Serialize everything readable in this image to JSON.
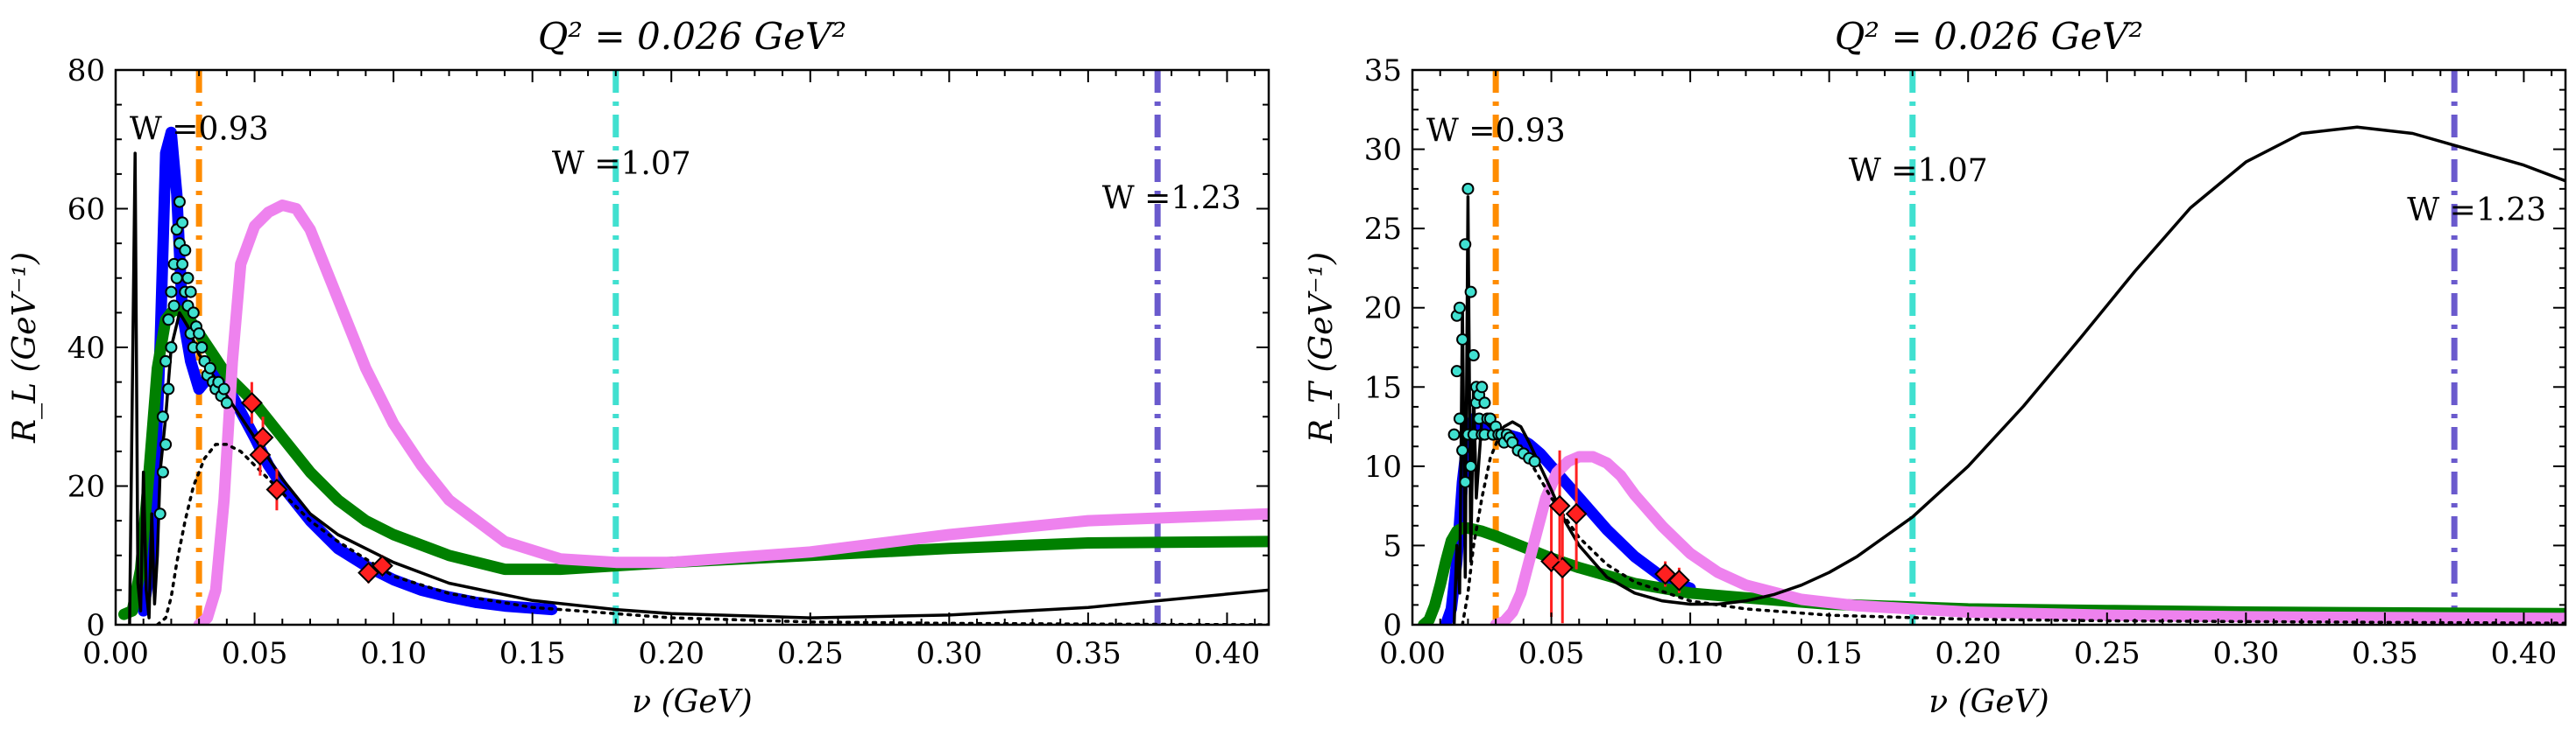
{
  "chart_data": [
    {
      "type": "line",
      "title": "Q² = 0.026 GeV²",
      "xlabel": "ν (GeV)",
      "ylabel": "R_L (GeV⁻¹)",
      "xlim": [
        0,
        0.415
      ],
      "ylim": [
        0,
        80
      ],
      "x_ticks": [
        0.0,
        0.05,
        0.1,
        0.15,
        0.2,
        0.25,
        0.3,
        0.35,
        0.4
      ],
      "x_tick_labels": [
        "0.00",
        "0.05",
        "0.10",
        "0.15",
        "0.20",
        "0.25",
        "0.30",
        "0.35",
        "0.40"
      ],
      "y_ticks": [
        0,
        20,
        40,
        60,
        80
      ],
      "y_tick_labels": [
        "0",
        "20",
        "40",
        "60",
        "80"
      ],
      "grid": false,
      "vlines": [
        {
          "x": 0.03,
          "color": "#ff8c00",
          "label": "W =0.93",
          "label_x": 0.005,
          "label_y": 70
        },
        {
          "x": 0.18,
          "color": "#40e0d0",
          "label": "W =1.07",
          "label_x": 0.157,
          "label_y": 65
        },
        {
          "x": 0.375,
          "color": "#6a5acd",
          "label": "W =1.23",
          "label_x": 0.355,
          "label_y": 60
        }
      ],
      "series": [
        {
          "color": "#0000ff",
          "width": 13,
          "style": "solid",
          "x": [
            0.01,
            0.013,
            0.016,
            0.018,
            0.02,
            0.022,
            0.024,
            0.027,
            0.03,
            0.034,
            0.038,
            0.042,
            0.046,
            0.05,
            0.055,
            0.06,
            0.07,
            0.08,
            0.09,
            0.1,
            0.11,
            0.12,
            0.13,
            0.14,
            0.157
          ],
          "y": [
            2,
            10,
            40,
            68,
            71,
            62,
            45,
            38,
            34,
            36,
            36,
            33,
            30,
            27,
            23,
            20,
            15,
            11,
            8.5,
            6.5,
            5,
            4,
            3.2,
            2.7,
            2.2
          ]
        },
        {
          "color": "#008000",
          "width": 13,
          "style": "solid",
          "x": [
            0.003,
            0.006,
            0.009,
            0.012,
            0.015,
            0.018,
            0.021,
            0.025,
            0.03,
            0.035,
            0.04,
            0.05,
            0.06,
            0.07,
            0.08,
            0.09,
            0.1,
            0.12,
            0.14,
            0.16,
            0.18,
            0.2,
            0.25,
            0.3,
            0.35,
            0.415
          ],
          "y": [
            1.5,
            2,
            8,
            22,
            37,
            44,
            45.5,
            45,
            42,
            39,
            36,
            32,
            27,
            22,
            18,
            15,
            13,
            10,
            8,
            8,
            8.5,
            9,
            10,
            11,
            11.8,
            12
          ]
        },
        {
          "color": "#ee82ee",
          "width": 13,
          "style": "solid",
          "x": [
            0.03,
            0.033,
            0.036,
            0.039,
            0.042,
            0.045,
            0.05,
            0.055,
            0.06,
            0.065,
            0.07,
            0.08,
            0.09,
            0.1,
            0.11,
            0.12,
            0.14,
            0.16,
            0.18,
            0.2,
            0.25,
            0.3,
            0.35,
            0.415
          ],
          "y": [
            0,
            1,
            5,
            18,
            38,
            52,
            57.5,
            59.5,
            60.5,
            60,
            57,
            47,
            37,
            29,
            23,
            18,
            12,
            9.5,
            9,
            9,
            10.5,
            13,
            15,
            16
          ]
        },
        {
          "color": "#000000",
          "width": 3.5,
          "style": "solid",
          "x": [
            0.005,
            0.007,
            0.008,
            0.009,
            0.01,
            0.011,
            0.012,
            0.013,
            0.014,
            0.015,
            0.016,
            0.018,
            0.02,
            0.023,
            0.026,
            0.03,
            0.035,
            0.04,
            0.045,
            0.05,
            0.06,
            0.07,
            0.08,
            0.1,
            0.12,
            0.15,
            0.18,
            0.2,
            0.25,
            0.3,
            0.35,
            0.415
          ],
          "y": [
            0,
            68,
            6,
            2,
            22,
            5,
            1,
            16,
            3,
            10,
            22,
            30,
            40,
            45,
            43,
            39,
            36,
            33,
            30,
            27,
            21,
            16,
            13,
            9,
            6,
            3.5,
            2.2,
            1.6,
            1,
            1.4,
            2.5,
            5
          ]
        },
        {
          "color": "#000000",
          "width": 3.5,
          "style": "dotted",
          "x": [
            0.015,
            0.018,
            0.02,
            0.022,
            0.025,
            0.028,
            0.032,
            0.036,
            0.04,
            0.045,
            0.05,
            0.06,
            0.07,
            0.08,
            0.1,
            0.12,
            0.15,
            0.2,
            0.25,
            0.3,
            0.35,
            0.415
          ],
          "y": [
            0,
            1,
            4,
            9,
            15,
            20,
            24,
            26,
            26,
            25,
            23,
            19,
            15,
            12,
            7,
            4.5,
            2.5,
            1,
            0.4,
            0.2,
            0.1,
            0
          ]
        }
      ],
      "scatter_points": {
        "color": "#40e0d0",
        "x": [
          0.016,
          0.017,
          0.017,
          0.018,
          0.018,
          0.019,
          0.019,
          0.02,
          0.02,
          0.021,
          0.021,
          0.022,
          0.022,
          0.023,
          0.023,
          0.024,
          0.024,
          0.025,
          0.025,
          0.026,
          0.026,
          0.027,
          0.027,
          0.028,
          0.028,
          0.029,
          0.03,
          0.031,
          0.032,
          0.033,
          0.034,
          0.035,
          0.036,
          0.037,
          0.038,
          0.039,
          0.04
        ],
        "y": [
          16,
          22,
          30,
          38,
          26,
          44,
          34,
          48,
          40,
          52,
          46,
          57,
          50,
          61,
          55,
          58,
          52,
          54,
          48,
          50,
          46,
          48,
          42,
          45,
          40,
          43,
          42,
          40,
          38,
          36,
          37,
          35,
          34,
          35,
          33,
          34,
          32
        ]
      },
      "diamond_points": {
        "color": "#ff2020",
        "x": [
          0.049,
          0.053,
          0.052,
          0.058,
          0.091,
          0.096
        ],
        "y": [
          32,
          27,
          24.5,
          19.5,
          7.5,
          8.5
        ],
        "err": [
          3,
          3,
          3,
          3,
          1.5,
          1.5
        ]
      }
    },
    {
      "type": "line",
      "title": "Q² = 0.026 GeV²",
      "xlabel": "ν (GeV)",
      "ylabel": "R_T (GeV⁻¹)",
      "xlim": [
        0,
        0.415
      ],
      "ylim": [
        0,
        35
      ],
      "x_ticks": [
        0.0,
        0.05,
        0.1,
        0.15,
        0.2,
        0.25,
        0.3,
        0.35,
        0.4
      ],
      "x_tick_labels": [
        "0.00",
        "0.05",
        "0.10",
        "0.15",
        "0.20",
        "0.25",
        "0.30",
        "0.35",
        "0.40"
      ],
      "y_ticks": [
        0,
        5,
        10,
        15,
        20,
        25,
        30,
        35
      ],
      "y_tick_labels": [
        "0",
        "5",
        "10",
        "15",
        "20",
        "25",
        "30",
        "35"
      ],
      "grid": false,
      "vlines": [
        {
          "x": 0.03,
          "color": "#ff8c00",
          "label": "W =0.93",
          "label_x": 0.005,
          "label_y": 30.5
        },
        {
          "x": 0.18,
          "color": "#40e0d0",
          "label": "W =1.07",
          "label_x": 0.157,
          "label_y": 28
        },
        {
          "x": 0.375,
          "color": "#6a5acd",
          "label": "W =1.23",
          "label_x": 0.358,
          "label_y": 25.5
        }
      ],
      "series": [
        {
          "color": "#0000ff",
          "width": 13,
          "style": "solid",
          "x": [
            0.012,
            0.014,
            0.016,
            0.018,
            0.02,
            0.022,
            0.025,
            0.028,
            0.03,
            0.034,
            0.038,
            0.042,
            0.046,
            0.05,
            0.055,
            0.06,
            0.065,
            0.07,
            0.08,
            0.09,
            0.1
          ],
          "y": [
            0,
            1,
            4,
            9,
            12,
            13,
            12.5,
            12.2,
            12,
            12,
            11.8,
            11.4,
            10.8,
            10,
            9,
            8,
            7,
            6,
            4.3,
            3,
            2.3
          ]
        },
        {
          "color": "#008000",
          "width": 13,
          "style": "solid",
          "x": [
            0.004,
            0.006,
            0.008,
            0.01,
            0.012,
            0.014,
            0.016,
            0.018,
            0.02,
            0.025,
            0.03,
            0.04,
            0.05,
            0.06,
            0.07,
            0.08,
            0.09,
            0.1,
            0.12,
            0.15,
            0.2,
            0.25,
            0.3,
            0.35,
            0.415
          ],
          "y": [
            0,
            0.3,
            1.2,
            2.5,
            4,
            5.3,
            5.9,
            6.1,
            6.1,
            5.9,
            5.6,
            4.9,
            4.2,
            3.6,
            3.1,
            2.6,
            2.3,
            2,
            1.7,
            1.3,
            1,
            0.9,
            0.8,
            0.75,
            0.7
          ]
        },
        {
          "color": "#ee82ee",
          "width": 13,
          "style": "solid",
          "x": [
            0.03,
            0.033,
            0.036,
            0.039,
            0.042,
            0.045,
            0.048,
            0.052,
            0.056,
            0.06,
            0.065,
            0.07,
            0.075,
            0.08,
            0.09,
            0.1,
            0.11,
            0.12,
            0.14,
            0.16,
            0.2,
            0.25,
            0.3,
            0.35,
            0.415
          ],
          "y": [
            0,
            0.2,
            0.8,
            2,
            4,
            6,
            8,
            9.6,
            10.3,
            10.6,
            10.6,
            10.2,
            9.4,
            8.2,
            6.2,
            4.5,
            3.3,
            2.5,
            1.6,
            1.2,
            0.8,
            0.6,
            0.5,
            0.45,
            0.4
          ]
        },
        {
          "color": "#000000",
          "width": 3.5,
          "style": "solid",
          "x": [
            0.015,
            0.016,
            0.017,
            0.018,
            0.019,
            0.02,
            0.021,
            0.022,
            0.023,
            0.025,
            0.028,
            0.03,
            0.033,
            0.036,
            0.039,
            0.042,
            0.046,
            0.05,
            0.055,
            0.06,
            0.07,
            0.08,
            0.09,
            0.1,
            0.11,
            0.12,
            0.13,
            0.14,
            0.15,
            0.16,
            0.18,
            0.2,
            0.22,
            0.24,
            0.26,
            0.28,
            0.3,
            0.32,
            0.34,
            0.36,
            0.38,
            0.4,
            0.415
          ],
          "y": [
            0,
            5,
            2,
            20,
            3,
            27,
            4,
            15,
            8,
            13,
            12.5,
            12,
            12.5,
            12.8,
            12.5,
            11.5,
            10,
            8.5,
            6.5,
            5,
            3,
            2,
            1.5,
            1.3,
            1.3,
            1.5,
            1.9,
            2.5,
            3.3,
            4.3,
            6.8,
            10,
            13.8,
            18,
            22.3,
            26.3,
            29.2,
            31,
            31.4,
            31,
            30,
            29,
            28
          ]
        },
        {
          "color": "#000000",
          "width": 3.5,
          "style": "dotted",
          "x": [
            0.018,
            0.02,
            0.022,
            0.025,
            0.028,
            0.031,
            0.034,
            0.037,
            0.04,
            0.045,
            0.05,
            0.06,
            0.07,
            0.08,
            0.1,
            0.12,
            0.15,
            0.2,
            0.25,
            0.3,
            0.35,
            0.415
          ],
          "y": [
            0,
            2,
            5,
            8,
            10.5,
            11.8,
            12,
            11.8,
            11,
            9.5,
            8,
            5.5,
            3.8,
            2.7,
            1.5,
            1,
            0.6,
            0.35,
            0.25,
            0.2,
            0.15,
            0.1
          ]
        }
      ],
      "scatter_points": {
        "color": "#40e0d0",
        "x": [
          0.015,
          0.016,
          0.016,
          0.017,
          0.017,
          0.018,
          0.018,
          0.019,
          0.019,
          0.02,
          0.02,
          0.021,
          0.021,
          0.022,
          0.022,
          0.023,
          0.023,
          0.024,
          0.024,
          0.025,
          0.025,
          0.026,
          0.026,
          0.027,
          0.028,
          0.029,
          0.03,
          0.031,
          0.032,
          0.033,
          0.034,
          0.035,
          0.036,
          0.038,
          0.04,
          0.042,
          0.044
        ],
        "y": [
          12,
          16,
          19.5,
          13,
          20,
          11,
          18,
          9,
          24,
          12,
          27.5,
          10,
          21,
          12,
          17,
          14,
          15,
          13,
          14.5,
          12,
          15,
          12,
          14,
          13,
          13,
          12,
          12.5,
          12,
          12,
          11.5,
          12,
          11.8,
          11.5,
          11,
          10.8,
          10.5,
          10.3
        ]
      },
      "diamond_points": {
        "color": "#ff2020",
        "x": [
          0.05,
          0.054,
          0.053,
          0.059,
          0.091,
          0.096
        ],
        "y": [
          4,
          3.6,
          7.5,
          7,
          3.2,
          2.8
        ],
        "err": [
          3.5,
          3.5,
          3.5,
          3.5,
          0.8,
          0.8
        ]
      }
    }
  ]
}
